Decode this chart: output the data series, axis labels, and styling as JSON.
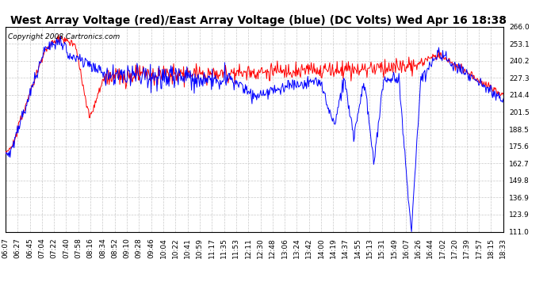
{
  "title": "West Array Voltage (red)/East Array Voltage (blue) (DC Volts) Wed Apr 16 18:38",
  "copyright": "Copyright 2008 Cartronics.com",
  "ylim": [
    111.0,
    266.0
  ],
  "yticks": [
    111.0,
    123.9,
    136.9,
    149.8,
    162.7,
    175.6,
    188.5,
    201.5,
    214.4,
    227.3,
    240.2,
    253.1,
    266.0
  ],
  "x_labels": [
    "06:07",
    "06:27",
    "06:45",
    "07:04",
    "07:22",
    "07:40",
    "07:58",
    "08:16",
    "08:34",
    "08:52",
    "09:10",
    "09:28",
    "09:46",
    "10:04",
    "10:22",
    "10:41",
    "10:59",
    "11:17",
    "11:35",
    "11:53",
    "12:11",
    "12:30",
    "12:48",
    "13:06",
    "13:24",
    "13:42",
    "14:00",
    "14:19",
    "14:37",
    "14:55",
    "15:13",
    "15:31",
    "15:49",
    "16:07",
    "16:26",
    "16:44",
    "17:02",
    "17:20",
    "17:39",
    "17:57",
    "18:15",
    "18:33"
  ],
  "bg_color": "#ffffff",
  "grid_color": "#bbbbbb",
  "red_color": "#ff0000",
  "blue_color": "#0000ff",
  "title_fontsize": 10,
  "copyright_fontsize": 6.5,
  "tick_fontsize": 6.5
}
